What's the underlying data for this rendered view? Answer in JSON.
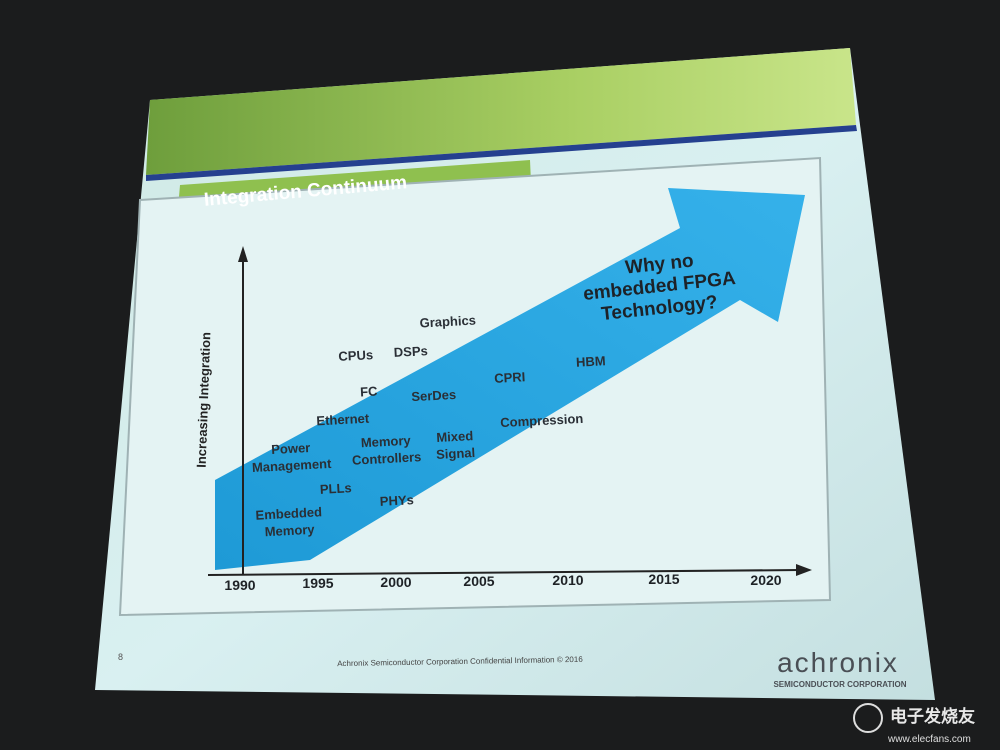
{
  "slide": {
    "title": "Integration Continuum",
    "y_axis_label": "Increasing Integration",
    "years": [
      "1990",
      "1995",
      "2000",
      "2005",
      "2010",
      "2015",
      "2020"
    ],
    "labels": [
      {
        "lines": [
          "Graphics"
        ]
      },
      {
        "lines": [
          "CPUs"
        ]
      },
      {
        "lines": [
          "DSPs"
        ]
      },
      {
        "lines": [
          "FC"
        ]
      },
      {
        "lines": [
          "SerDes"
        ]
      },
      {
        "lines": [
          "CPRI"
        ]
      },
      {
        "lines": [
          "HBM"
        ]
      },
      {
        "lines": [
          "Ethernet"
        ]
      },
      {
        "lines": [
          "Power",
          "Management"
        ]
      },
      {
        "lines": [
          "Memory",
          "Controllers"
        ]
      },
      {
        "lines": [
          "Mixed",
          "Signal"
        ]
      },
      {
        "lines": [
          "Compression"
        ]
      },
      {
        "lines": [
          "PLLs"
        ]
      },
      {
        "lines": [
          "PHYs"
        ]
      },
      {
        "lines": [
          "Embedded",
          "Memory"
        ]
      }
    ],
    "callout": [
      "Why no",
      "embedded FPGA",
      "Technology?"
    ],
    "page_number": "8",
    "footer": "Achronix Semiconductor Corporation Confidential Information © 2016",
    "logo": "achronix",
    "logo_sub": "SEMICONDUCTOR CORPORATION"
  },
  "watermark": {
    "name": "电子发烧友",
    "url": "www.elecfans.com"
  }
}
